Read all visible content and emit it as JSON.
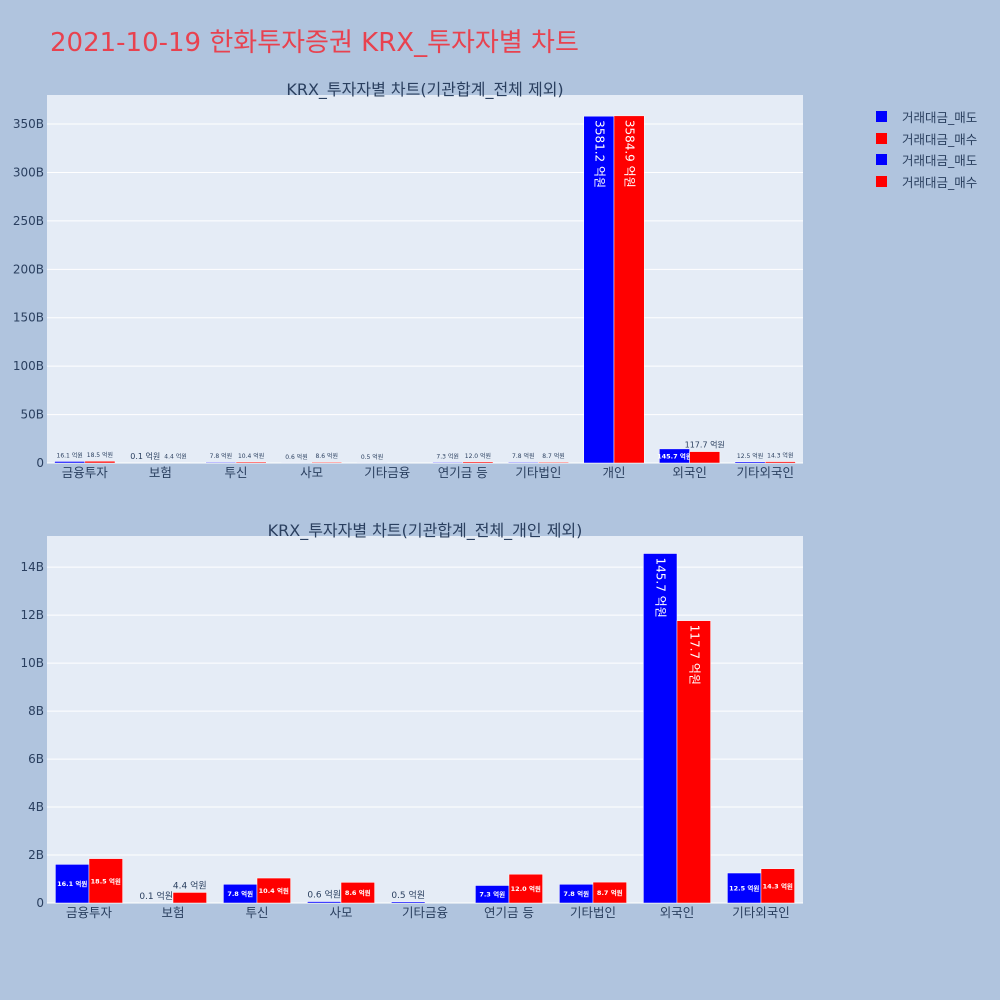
{
  "page_title": "2021-10-19 한화투자증권 KRX_투자자별 차트",
  "colors": {
    "sell": "#0000ff",
    "buy": "#ff0000"
  },
  "legend": [
    {
      "label": "거래대금_매도",
      "color": "#0000ff"
    },
    {
      "label": "거래대금_매수",
      "color": "#ff0000"
    },
    {
      "label": "거래대금_매도",
      "color": "#0000ff"
    },
    {
      "label": "거래대금_매수",
      "color": "#ff0000"
    }
  ],
  "chart_data": [
    {
      "type": "bar",
      "title": "KRX_투자자별 차트(기관합계_전체 제외)",
      "categories": [
        "금융투자",
        "보험",
        "투신",
        "사모",
        "기타금융",
        "연기금 등",
        "기타법인",
        "개인",
        "외국인",
        "기타외국인"
      ],
      "series": [
        {
          "name": "거래대금_매도",
          "values": [
            1.61,
            0.01,
            0.78,
            0.06,
            0.05,
            0.73,
            0.78,
            358.12,
            14.57,
            1.25
          ],
          "labels": [
            "16.1 억원",
            "0.1 억원",
            "7.8 억원",
            "0.6 억원",
            "0.5 억원",
            "7.3 억원",
            "7.8 억원",
            "3581.2 억원",
            "145.7 억원",
            "12.5 억원"
          ]
        },
        {
          "name": "거래대금_매수",
          "values": [
            1.85,
            0.44,
            1.04,
            0.86,
            0,
            1.2,
            0.87,
            358.49,
            11.77,
            1.43
          ],
          "labels": [
            "18.5 억원",
            "4.4 억원",
            "10.4 억원",
            "8.6 억원",
            "",
            "12.0 억원",
            "8.7 억원",
            "3584.9 억원",
            "117.7 억원",
            "14.3 억원"
          ]
        }
      ],
      "ylim": [
        0,
        380
      ],
      "yticks": [
        0,
        50,
        100,
        150,
        200,
        250,
        300,
        350
      ],
      "ytick_labels": [
        "0",
        "50B",
        "100B",
        "150B",
        "200B",
        "250B",
        "300B",
        "350B"
      ]
    },
    {
      "type": "bar",
      "title": "KRX_투자자별 차트(기관합계_전체_개인 제외)",
      "categories": [
        "금융투자",
        "보험",
        "투신",
        "사모",
        "기타금융",
        "연기금 등",
        "기타법인",
        "외국인",
        "기타외국인"
      ],
      "series": [
        {
          "name": "거래대금_매도",
          "values": [
            1.61,
            0.01,
            0.78,
            0.06,
            0.05,
            0.73,
            0.78,
            14.57,
            1.25
          ],
          "labels": [
            "16.1 억원",
            "0.1 억원",
            "7.8 억원",
            "0.6 억원",
            "0.5 억원",
            "7.3 억원",
            "7.8 억원",
            "145.7 억원",
            "12.5 억원"
          ]
        },
        {
          "name": "거래대금_매수",
          "values": [
            1.85,
            0.44,
            1.04,
            0.86,
            0,
            1.2,
            0.87,
            11.77,
            1.43
          ],
          "labels": [
            "18.5 억원",
            "4.4 억원",
            "10.4 억원",
            "8.6 억원",
            "",
            "12.0 억원",
            "8.7 억원",
            "117.7 억원",
            "14.3 억원"
          ]
        }
      ],
      "ylim": [
        0,
        15.3
      ],
      "yticks": [
        0,
        2,
        4,
        6,
        8,
        10,
        12,
        14
      ],
      "ytick_labels": [
        "0",
        "2B",
        "4B",
        "6B",
        "8B",
        "10B",
        "12B",
        "14B"
      ]
    }
  ]
}
